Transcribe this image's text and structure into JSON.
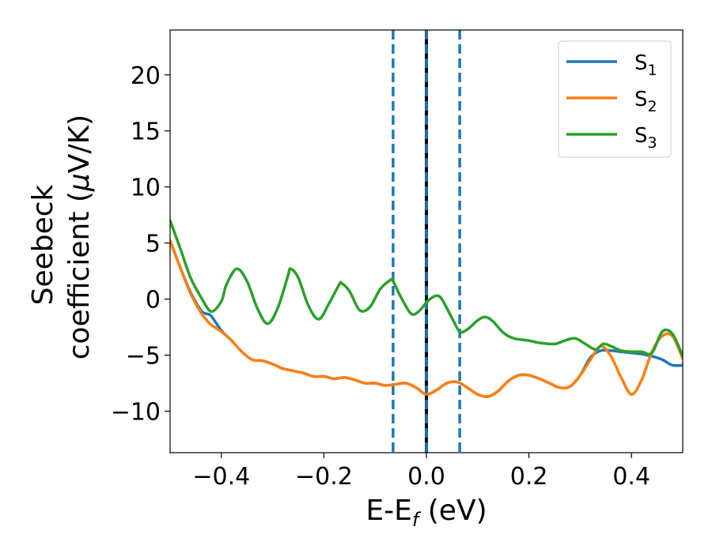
{
  "chart_data": {
    "type": "line",
    "title": "",
    "xlabel": "E-E",
    "xlabel_sub": "f",
    "xlabel_unit": " (eV)",
    "ylabel_line1": "Seebeck",
    "ylabel_line2": "coefficient  (",
    "ylabel_mu": "μ",
    "ylabel_unit": "V/K)",
    "xlim": [
      -0.5,
      0.5
    ],
    "ylim": [
      -13.7,
      24.0
    ],
    "xticks": [
      -0.4,
      -0.2,
      0.0,
      0.2,
      0.4
    ],
    "xtick_labels": [
      "−0.4",
      "−0.2",
      "0.0",
      "0.2",
      "0.4"
    ],
    "yticks": [
      -10,
      -5,
      0,
      5,
      10,
      15,
      20
    ],
    "ytick_labels": [
      "−10",
      "−5",
      "0",
      "5",
      "10",
      "15",
      "20"
    ],
    "legend_position": "upper right",
    "vlines": [
      {
        "x": -0.065,
        "style": "dashed",
        "color": "#1f77b4"
      },
      {
        "x": 0.0,
        "style": "solid",
        "color": "#000000"
      },
      {
        "x": 0.0,
        "style": "dashed",
        "color": "#1f77b4"
      },
      {
        "x": 0.065,
        "style": "dashed",
        "color": "#1f77b4"
      }
    ],
    "series": [
      {
        "name": "S",
        "sub": "1",
        "color": "#1f77b4",
        "x": [
          -0.5,
          -0.48,
          -0.46,
          -0.44,
          -0.43,
          -0.42,
          -0.4,
          -0.38,
          -0.36,
          -0.34,
          -0.32,
          -0.3,
          -0.28,
          -0.26,
          -0.24,
          -0.22,
          -0.2,
          -0.18,
          -0.16,
          -0.14,
          -0.12,
          -0.1,
          -0.08,
          -0.06,
          -0.04,
          -0.02,
          0.0,
          0.02,
          0.04,
          0.06,
          0.08,
          0.1,
          0.12,
          0.14,
          0.16,
          0.18,
          0.2,
          0.22,
          0.24,
          0.26,
          0.28,
          0.3,
          0.32,
          0.34,
          0.36,
          0.38,
          0.4,
          0.42,
          0.44,
          0.46,
          0.48,
          0.5
        ],
        "y": [
          5.2,
          2.8,
          0.6,
          -1.0,
          -1.3,
          -1.5,
          -2.8,
          -3.7,
          -4.7,
          -5.4,
          -5.5,
          -5.8,
          -6.2,
          -6.4,
          -6.6,
          -6.9,
          -6.9,
          -7.1,
          -7.0,
          -7.2,
          -7.5,
          -7.5,
          -7.7,
          -7.6,
          -7.5,
          -7.9,
          -8.5,
          -8.1,
          -7.5,
          -7.4,
          -7.9,
          -8.5,
          -8.7,
          -8.2,
          -7.3,
          -6.8,
          -6.8,
          -7.1,
          -7.5,
          -7.9,
          -7.8,
          -6.8,
          -5.2,
          -4.6,
          -4.6,
          -4.7,
          -4.8,
          -4.9,
          -5.1,
          -5.4,
          -5.9,
          -5.9
        ]
      },
      {
        "name": "S",
        "sub": "2",
        "color": "#ff7f0e",
        "x": [
          -0.5,
          -0.48,
          -0.46,
          -0.44,
          -0.43,
          -0.42,
          -0.4,
          -0.38,
          -0.36,
          -0.34,
          -0.32,
          -0.3,
          -0.28,
          -0.26,
          -0.24,
          -0.22,
          -0.2,
          -0.18,
          -0.16,
          -0.14,
          -0.12,
          -0.1,
          -0.08,
          -0.06,
          -0.04,
          -0.02,
          0.0,
          0.02,
          0.04,
          0.06,
          0.08,
          0.1,
          0.12,
          0.14,
          0.16,
          0.18,
          0.2,
          0.22,
          0.24,
          0.26,
          0.28,
          0.3,
          0.32,
          0.34,
          0.36,
          0.38,
          0.4,
          0.42,
          0.44,
          0.46,
          0.48,
          0.5
        ],
        "y": [
          5.2,
          2.8,
          0.5,
          -1.2,
          -1.8,
          -2.3,
          -2.9,
          -3.7,
          -4.7,
          -5.4,
          -5.5,
          -5.8,
          -6.2,
          -6.4,
          -6.6,
          -6.9,
          -6.9,
          -7.1,
          -7.0,
          -7.2,
          -7.5,
          -7.5,
          -7.7,
          -7.6,
          -7.5,
          -7.9,
          -8.5,
          -8.1,
          -7.5,
          -7.4,
          -7.9,
          -8.5,
          -8.7,
          -8.2,
          -7.3,
          -6.8,
          -6.8,
          -7.1,
          -7.5,
          -7.9,
          -7.8,
          -6.8,
          -5.4,
          -4.2,
          -5.1,
          -7.0,
          -8.5,
          -7.2,
          -4.7,
          -3.3,
          -3.3,
          -5.3
        ]
      },
      {
        "name": "S",
        "sub": "3",
        "color": "#2ca02c",
        "x": [
          -0.5,
          -0.48,
          -0.46,
          -0.44,
          -0.42,
          -0.4,
          -0.39,
          -0.37,
          -0.35,
          -0.33,
          -0.31,
          -0.29,
          -0.27,
          -0.265,
          -0.25,
          -0.23,
          -0.21,
          -0.19,
          -0.17,
          -0.165,
          -0.15,
          -0.13,
          -0.11,
          -0.09,
          -0.07,
          -0.065,
          -0.05,
          -0.03,
          -0.015,
          0.0,
          0.01,
          0.02,
          0.03,
          0.05,
          0.065,
          0.08,
          0.1,
          0.115,
          0.13,
          0.15,
          0.17,
          0.2,
          0.22,
          0.25,
          0.27,
          0.29,
          0.31,
          0.33,
          0.345,
          0.36,
          0.38,
          0.4,
          0.42,
          0.44,
          0.46,
          0.48,
          0.5
        ],
        "y": [
          7.0,
          4.5,
          1.9,
          0.2,
          -1.1,
          -0.2,
          1.3,
          2.7,
          1.6,
          -0.8,
          -2.2,
          -0.8,
          2.1,
          2.7,
          1.9,
          -0.6,
          -1.8,
          -0.4,
          1.3,
          1.4,
          0.7,
          -1.0,
          -0.7,
          0.9,
          1.7,
          1.6,
          0.2,
          -1.3,
          -1.1,
          -0.3,
          0.1,
          0.3,
          0.0,
          -1.7,
          -2.9,
          -2.7,
          -1.9,
          -1.6,
          -2.0,
          -3.0,
          -3.5,
          -3.7,
          -3.9,
          -4.0,
          -3.7,
          -3.5,
          -4.0,
          -4.5,
          -4.0,
          -4.2,
          -4.6,
          -4.7,
          -4.7,
          -4.8,
          -2.9,
          -3.1,
          -5.1
        ]
      }
    ]
  }
}
